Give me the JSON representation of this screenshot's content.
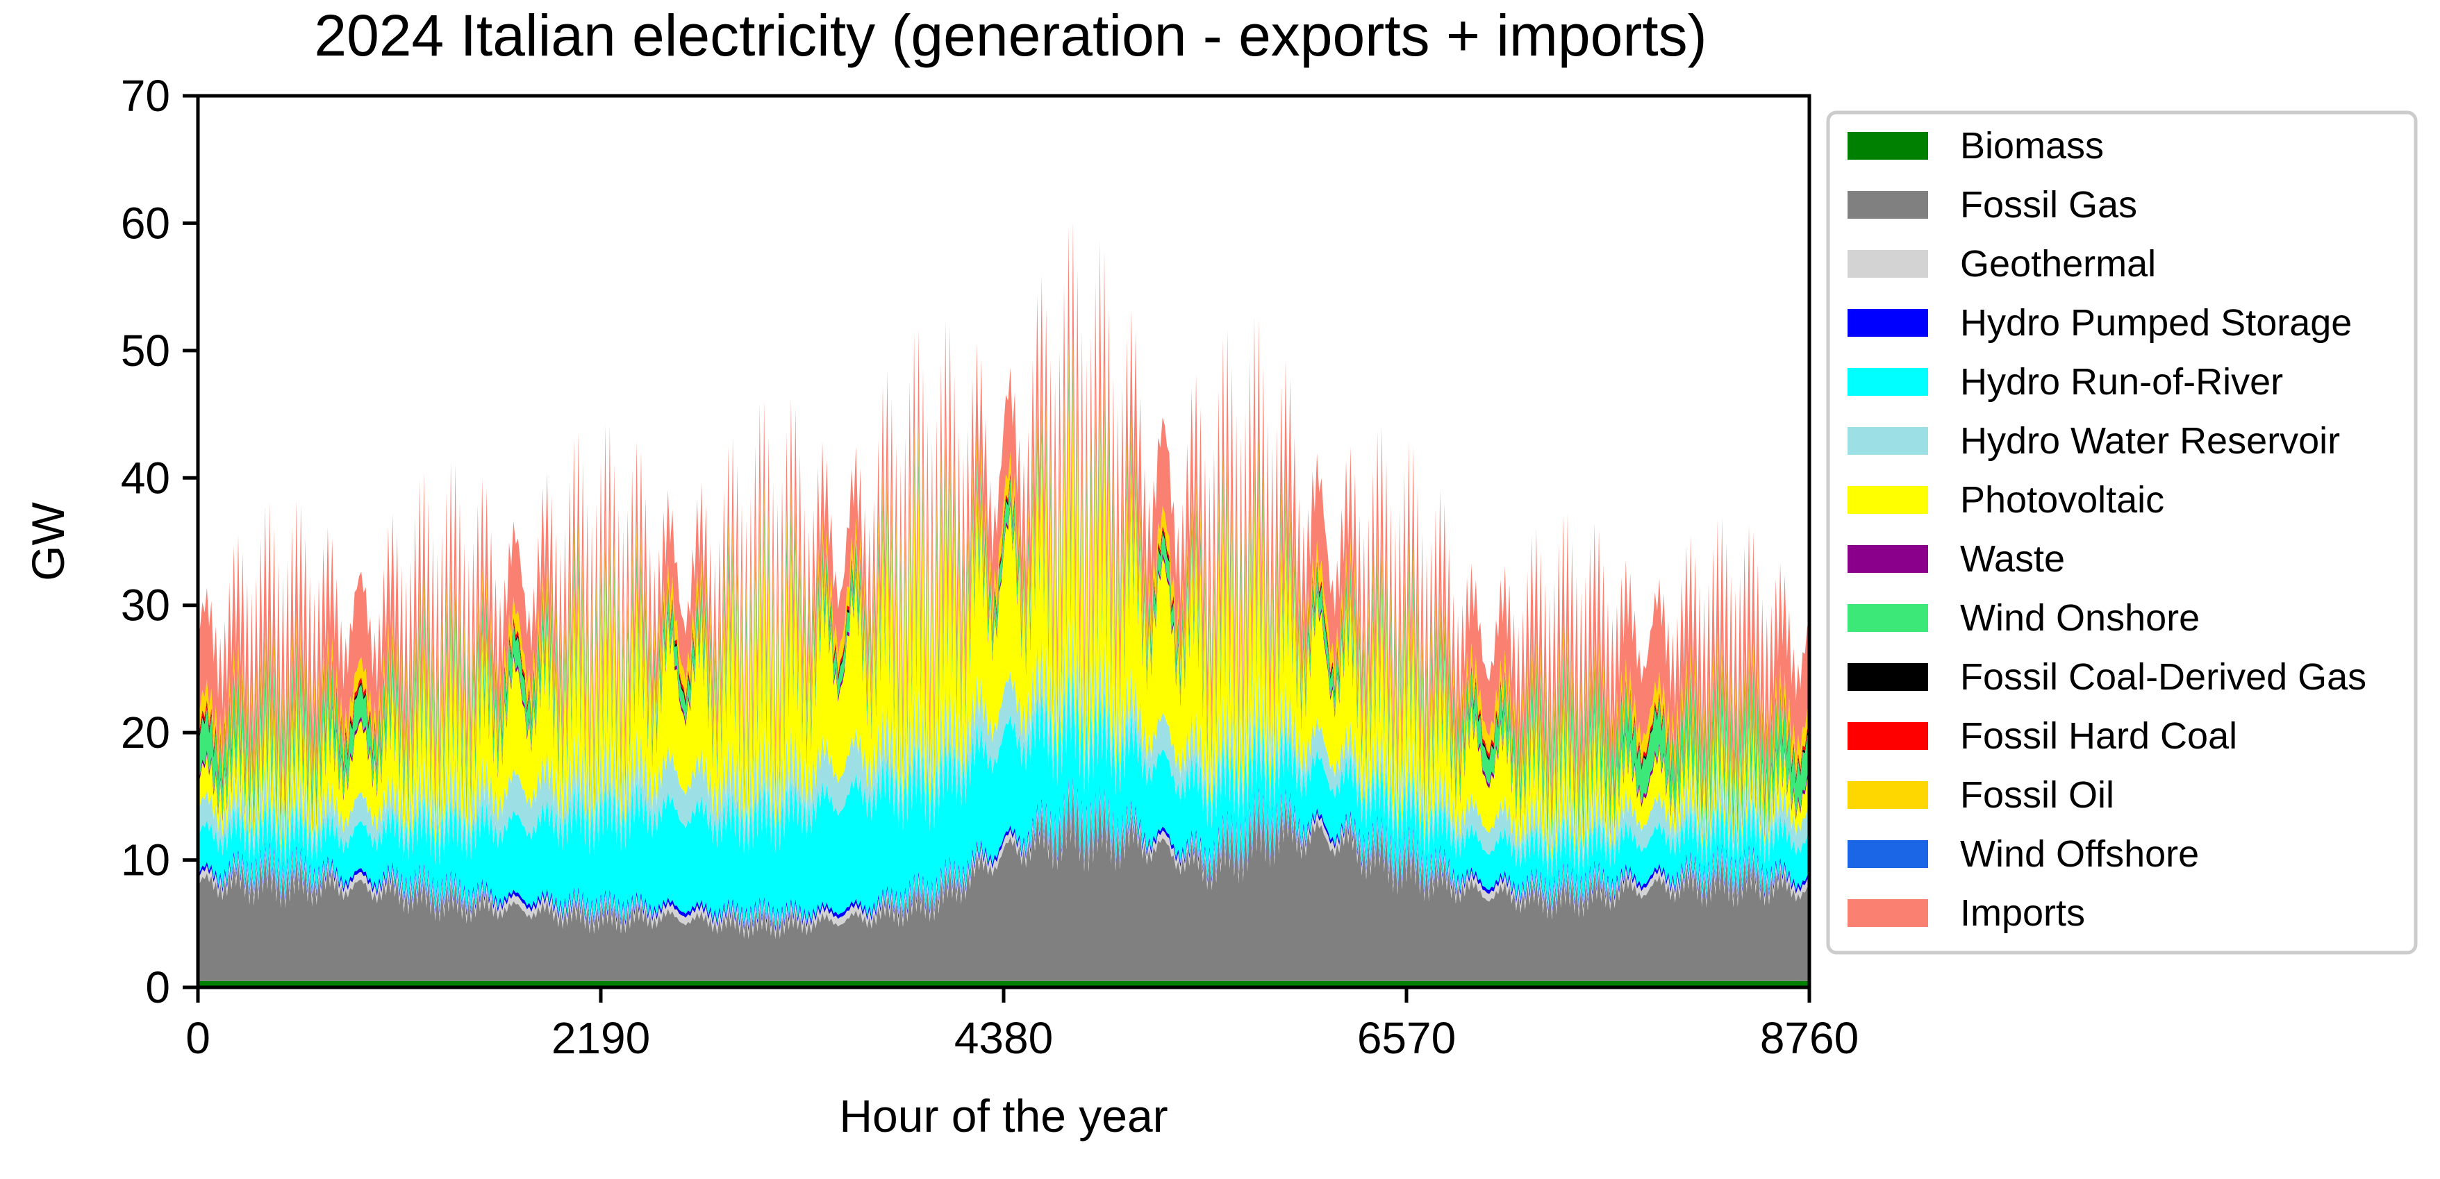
{
  "chart_data": {
    "type": "area",
    "stacked": true,
    "title": "2024 Italian electricity (generation - exports + imports)",
    "xlabel": "Hour of the year",
    "ylabel": "GW",
    "xlim": [
      0,
      8760
    ],
    "ylim": [
      0,
      70
    ],
    "xticks": [
      0,
      2190,
      4380,
      6570,
      8760
    ],
    "yticks": [
      0,
      10,
      20,
      30,
      40,
      50,
      60,
      70
    ],
    "grid": false,
    "legend_position": "right",
    "x_sample_hours": [
      0,
      365,
      730,
      1095,
      1460,
      1825,
      2190,
      2555,
      2920,
      3285,
      3650,
      4015,
      4380,
      4745,
      5110,
      5475,
      5840,
      6205,
      6570,
      6935,
      7300,
      7665,
      8030,
      8395,
      8760
    ],
    "series": [
      {
        "name": "Biomass",
        "color": "#008000",
        "values": [
          0.5,
          0.5,
          0.5,
          0.5,
          0.5,
          0.5,
          0.5,
          0.5,
          0.5,
          0.5,
          0.5,
          0.5,
          0.5,
          0.5,
          0.5,
          0.5,
          0.5,
          0.5,
          0.5,
          0.5,
          0.5,
          0.5,
          0.5,
          0.5,
          0.5
        ]
      },
      {
        "name": "Fossil Gas",
        "color": "#808080",
        "values": [
          7.5,
          8,
          7.5,
          7,
          6,
          5.5,
          5,
          5,
          4.5,
          4.5,
          5,
          6.5,
          10,
          12,
          11,
          9,
          12,
          11,
          9,
          7,
          6.5,
          7,
          7.5,
          8,
          7
        ]
      },
      {
        "name": "Geothermal",
        "color": "#d3d3d3",
        "values": [
          0.6,
          0.6,
          0.6,
          0.6,
          0.6,
          0.6,
          0.6,
          0.6,
          0.6,
          0.6,
          0.6,
          0.6,
          0.6,
          0.6,
          0.6,
          0.6,
          0.6,
          0.6,
          0.6,
          0.6,
          0.6,
          0.6,
          0.6,
          0.6,
          0.6
        ]
      },
      {
        "name": "Hydro Pumped Storage",
        "color": "#0000ff",
        "values": [
          0.3,
          0.3,
          0.3,
          0.3,
          0.3,
          0.3,
          0.3,
          0.3,
          0.3,
          0.3,
          0.3,
          0.3,
          0.3,
          0.3,
          0.3,
          0.3,
          0.3,
          0.3,
          0.3,
          0.3,
          0.3,
          0.3,
          0.3,
          0.3,
          0.3
        ]
      },
      {
        "name": "Hydro Run-of-River",
        "color": "#00ffff",
        "values": [
          3,
          3,
          3,
          4,
          5,
          6,
          7,
          7.5,
          7,
          8,
          9,
          8,
          8,
          7,
          6,
          5,
          4.5,
          4,
          3.5,
          3,
          3,
          3,
          3,
          3,
          3
        ]
      },
      {
        "name": "Hydro Water Reservoir",
        "color": "#9ce0e6",
        "values": [
          2,
          2,
          2,
          2,
          2.5,
          3,
          3,
          3,
          3,
          3,
          3,
          3,
          3,
          3,
          2.5,
          2.5,
          2.5,
          2,
          2,
          2,
          2,
          2,
          2,
          2,
          2
        ]
      },
      {
        "name": "Photovoltaic",
        "color": "#ffff00",
        "values": [
          2,
          3,
          4,
          5,
          6,
          7,
          7,
          7.5,
          8,
          9,
          9,
          9.5,
          10,
          10,
          10,
          9,
          8,
          7,
          6,
          5,
          4,
          3,
          2.5,
          2,
          2
        ]
      },
      {
        "name": "Waste",
        "color": "#8b008b",
        "values": [
          0.3,
          0.3,
          0.3,
          0.3,
          0.3,
          0.3,
          0.3,
          0.3,
          0.3,
          0.3,
          0.3,
          0.3,
          0.3,
          0.3,
          0.3,
          0.3,
          0.3,
          0.3,
          0.3,
          0.3,
          0.3,
          0.3,
          0.3,
          0.3,
          0.3
        ]
      },
      {
        "name": "Wind Onshore",
        "color": "#3ce878",
        "values": [
          3,
          2.5,
          2.5,
          2,
          2,
          2,
          1.5,
          1.5,
          1.5,
          1.5,
          1.5,
          1.5,
          1.5,
          1.5,
          1.5,
          1.5,
          1.5,
          1.5,
          2,
          2,
          2.5,
          3,
          3,
          3,
          3
        ]
      },
      {
        "name": "Fossil Coal-Derived Gas",
        "color": "#000000",
        "values": [
          0.2,
          0.2,
          0.2,
          0.2,
          0.2,
          0.2,
          0.2,
          0.2,
          0.2,
          0.2,
          0.2,
          0.2,
          0.2,
          0.2,
          0.2,
          0.2,
          0.2,
          0.2,
          0.2,
          0.2,
          0.2,
          0.2,
          0.2,
          0.2,
          0.2
        ]
      },
      {
        "name": "Fossil Hard Coal",
        "color": "#ff0000",
        "values": [
          0.4,
          0.4,
          0.4,
          0.3,
          0.3,
          0.3,
          0.3,
          0.3,
          0.3,
          0.3,
          0.3,
          0.3,
          0.3,
          0.3,
          0.3,
          0.3,
          0.3,
          0.3,
          0.3,
          0.3,
          0.3,
          0.3,
          0.3,
          0.3,
          0.3
        ]
      },
      {
        "name": "Fossil Oil",
        "color": "#ffd700",
        "values": [
          1.5,
          1.5,
          1.5,
          1.5,
          1.5,
          1.5,
          1.5,
          1.5,
          1.5,
          1.5,
          1.5,
          1.5,
          1.5,
          1.5,
          1.5,
          1.5,
          1.5,
          1.5,
          1.5,
          1.5,
          1.5,
          1.5,
          1.5,
          1.5,
          1.5
        ]
      },
      {
        "name": "Wind Offshore",
        "color": "#1a66e6",
        "values": [
          0,
          0,
          0,
          0,
          0,
          0,
          0,
          0,
          0,
          0,
          0,
          0,
          0,
          0,
          0,
          0,
          0,
          0,
          0,
          0,
          0,
          0,
          0,
          0,
          0
        ]
      },
      {
        "name": "Imports",
        "color": "#fa8072",
        "values": [
          6,
          6,
          6,
          5.5,
          5,
          5,
          4.5,
          4.5,
          4,
          4.5,
          4.5,
          5,
          5.5,
          6,
          6,
          6,
          6,
          5.5,
          5,
          5,
          5.5,
          6,
          6,
          6,
          6
        ]
      }
    ]
  }
}
